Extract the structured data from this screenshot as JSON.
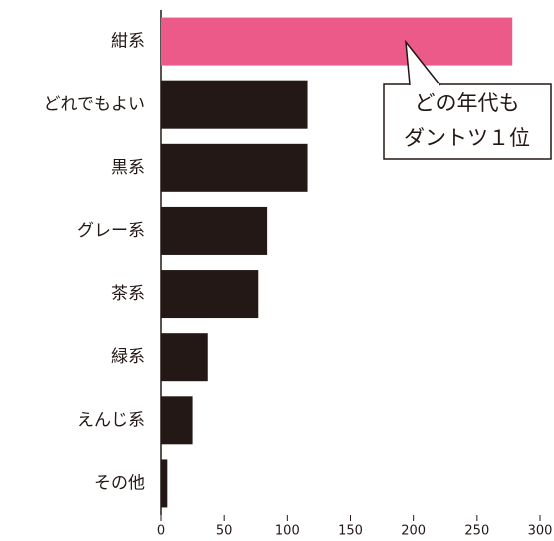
{
  "chart_data": {
    "type": "barh",
    "categories": [
      "紺系",
      "どれでもよい",
      "黒系",
      "グレー系",
      "茶系",
      "緑系",
      "えんじ系",
      "その他"
    ],
    "values": [
      278,
      116,
      116,
      84,
      77,
      37,
      25,
      5
    ],
    "colors": [
      "#ec5a8a",
      "#231815",
      "#231815",
      "#231815",
      "#231815",
      "#231815",
      "#231815",
      "#231815"
    ],
    "xlim": [
      0,
      300
    ],
    "xticks": [
      0,
      50,
      100,
      150,
      200,
      250,
      300
    ],
    "annotation": [
      "どの年代も",
      "ダントツ１位"
    ]
  }
}
